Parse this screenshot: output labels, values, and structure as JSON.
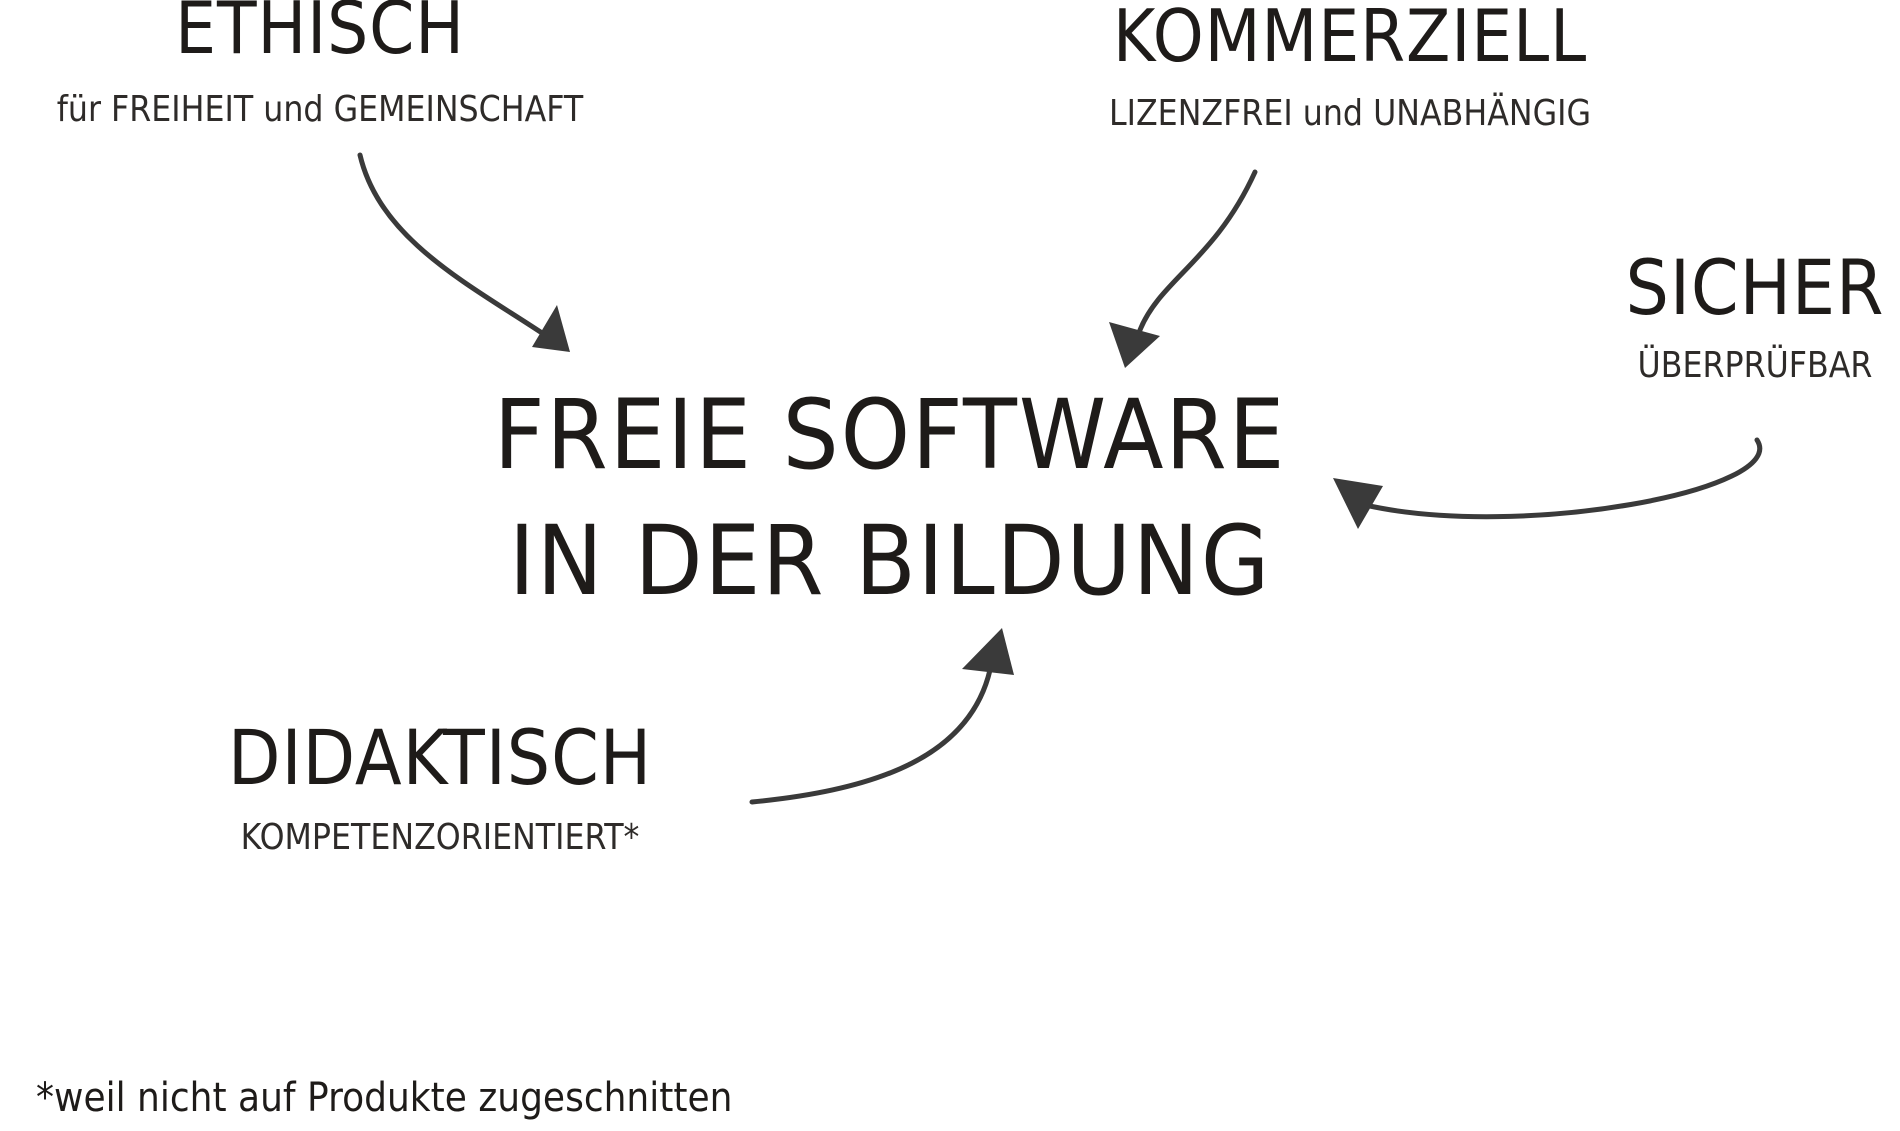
{
  "center": {
    "line1": "FREIE SOFTWARE",
    "line2": "IN DER BILDUNG"
  },
  "nodes": {
    "ethisch": {
      "title": "ETHISCH",
      "subtitle": "für FREIHEIT und GEMEINSCHAFT"
    },
    "kommerziell": {
      "title": "KOMMERZIELL",
      "subtitle": "LIZENZFREI und UNABHÄNGIG"
    },
    "sicher": {
      "title": "SICHER",
      "subtitle": "ÜBERPRÜFBAR"
    },
    "didaktisch": {
      "title": "DIDAKTISCH",
      "subtitle": "KOMPETENZORIENTIERT*"
    }
  },
  "footnote": "*weil nicht auf Produkte zugeschnitten",
  "colors": {
    "text": "#1e1b19",
    "arrow": "#3a3a3a"
  }
}
